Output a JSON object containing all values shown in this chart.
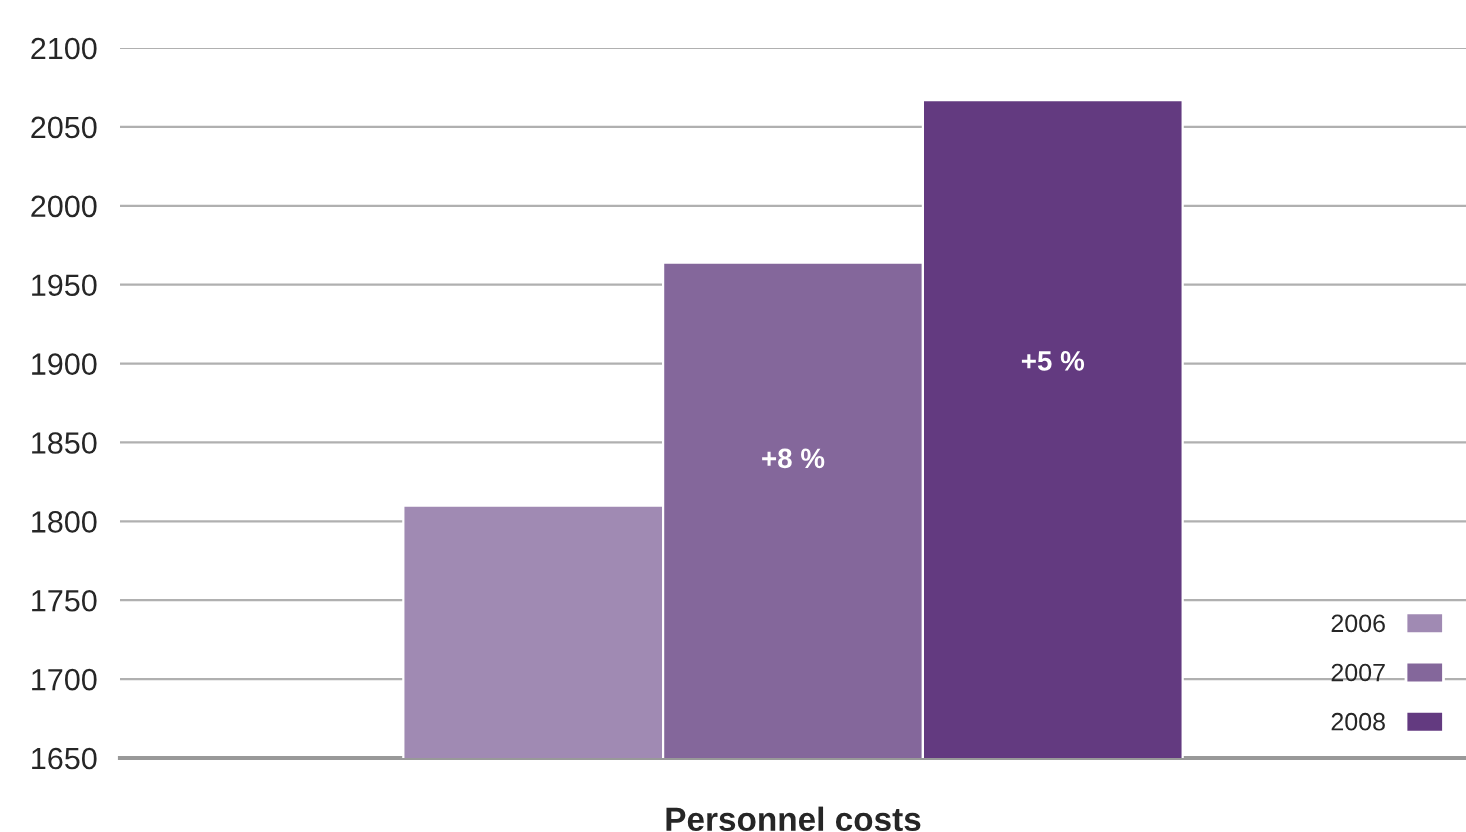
{
  "chart_data": {
    "type": "bar",
    "xlabel": "Personnel costs",
    "categories": [
      null
    ],
    "series": [
      {
        "name": "2006",
        "color": "#a08ab3",
        "values": [
          1810
        ]
      },
      {
        "name": "2007",
        "color": "#84679b",
        "values": [
          1964
        ]
      },
      {
        "name": "2008",
        "color": "#633a80",
        "values": [
          2067
        ]
      }
    ],
    "annotations": [
      "+8 %",
      "+5 %"
    ],
    "ylim": [
      1650,
      2100
    ],
    "yticks": [
      1650,
      1700,
      1750,
      1800,
      1850,
      1900,
      1950,
      2000,
      2050,
      2100
    ],
    "grid": "y",
    "legend": "bottom right"
  }
}
